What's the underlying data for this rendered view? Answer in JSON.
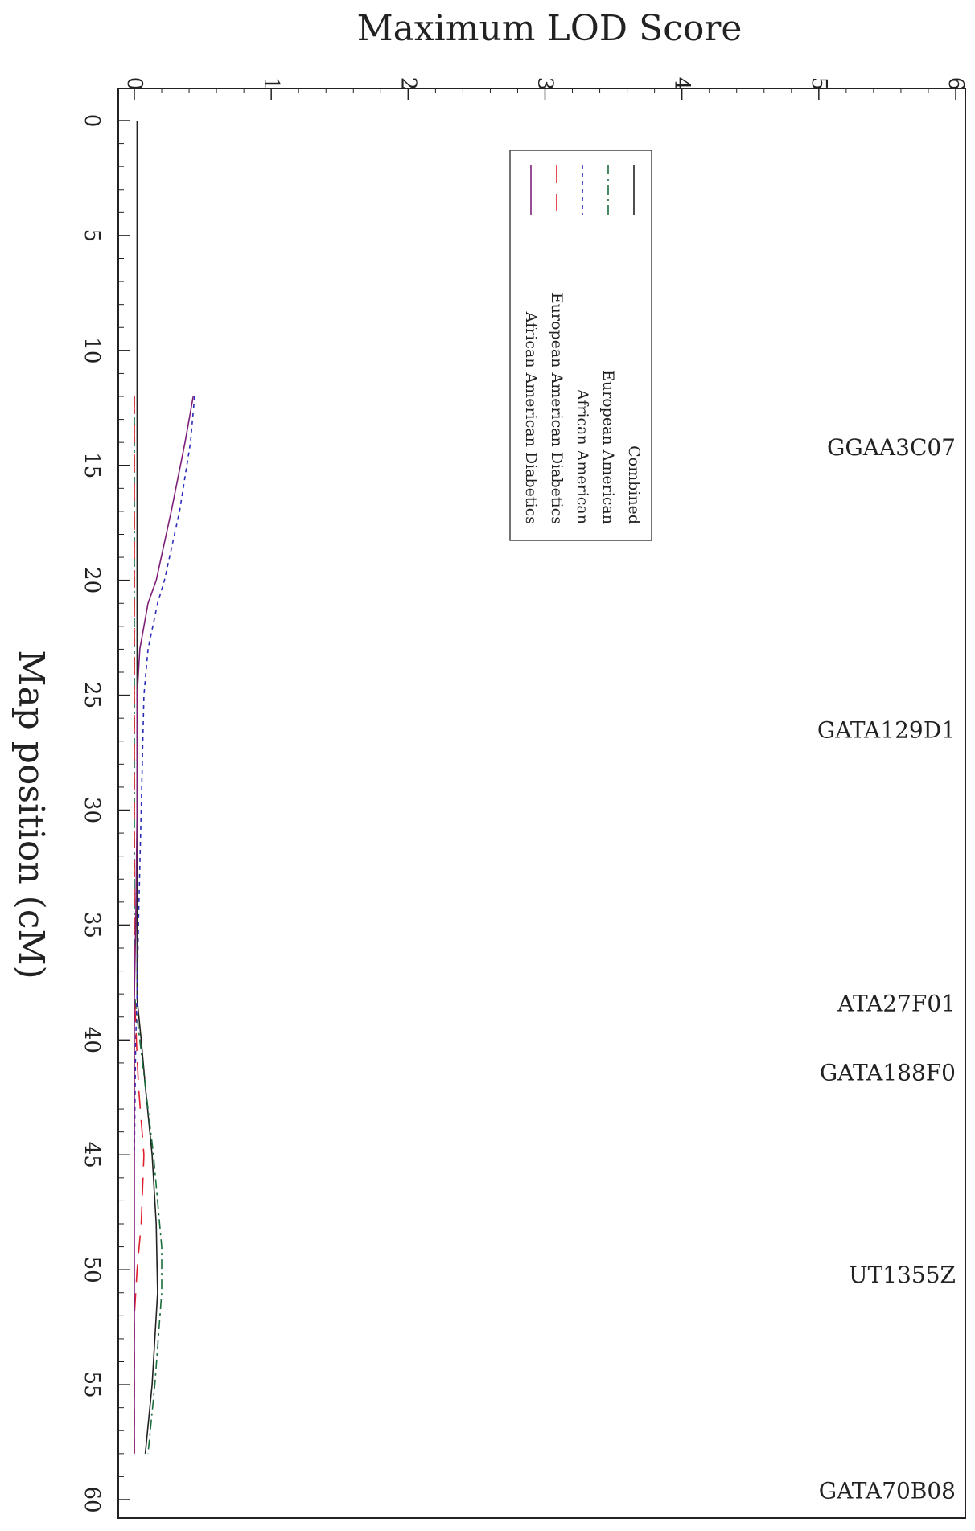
{
  "chart_data": {
    "type": "line",
    "orientation": "rotated-90",
    "xlabel": "Map position (cM)",
    "ylabel": "Maximum LOD Score",
    "xlim": [
      0,
      60
    ],
    "ylim": [
      0,
      6
    ],
    "x_ticks": [
      "0",
      "5",
      "10",
      "15",
      "20",
      "25",
      "30",
      "35",
      "40",
      "45",
      "50",
      "55",
      "60"
    ],
    "y_ticks": [
      "0",
      "1",
      "2",
      "3",
      "4",
      "5",
      "6"
    ],
    "legend_placement": "top-right",
    "markers": [
      {
        "label": "GGAA3C07",
        "position": 14.2
      },
      {
        "label": "GATA129D1",
        "position": 26.5
      },
      {
        "label": "ATA27F01",
        "position": 38.4
      },
      {
        "label": "GATA188F0",
        "position": 41.4
      },
      {
        "label": "UT1355Z",
        "position": 50.2
      },
      {
        "label": "GATA70B08",
        "position": 59.6
      }
    ],
    "series": [
      {
        "name": "Combined",
        "color": "#222222",
        "dash": "solid",
        "points": [
          [
            0,
            0.02
          ],
          [
            5,
            0.02
          ],
          [
            10,
            0.02
          ],
          [
            15,
            0.02
          ],
          [
            20,
            0.02
          ],
          [
            25,
            0.02
          ],
          [
            30,
            0.02
          ],
          [
            35,
            0.02
          ],
          [
            38.2,
            0.02
          ],
          [
            40,
            0.05
          ],
          [
            42,
            0.08
          ],
          [
            45,
            0.13
          ],
          [
            48,
            0.16
          ],
          [
            51,
            0.17
          ],
          [
            55,
            0.13
          ],
          [
            58,
            0.08
          ]
        ]
      },
      {
        "name": "European American",
        "color": "#1a6e3c",
        "dash": "12,5,3,5",
        "points": [
          [
            12,
            0.0
          ],
          [
            20,
            0.0
          ],
          [
            30,
            0.0
          ],
          [
            38,
            0.0
          ],
          [
            40,
            0.04
          ],
          [
            42,
            0.08
          ],
          [
            45,
            0.14
          ],
          [
            49,
            0.2
          ],
          [
            51,
            0.2
          ],
          [
            55,
            0.15
          ],
          [
            58,
            0.1
          ]
        ]
      },
      {
        "name": "African American",
        "color": "#2b2bb8",
        "dash": "5,5",
        "points": [
          [
            12,
            0.44
          ],
          [
            14,
            0.41
          ],
          [
            17,
            0.33
          ],
          [
            20,
            0.22
          ],
          [
            21,
            0.17
          ],
          [
            23,
            0.1
          ],
          [
            25,
            0.07
          ],
          [
            30,
            0.05
          ],
          [
            35,
            0.03
          ],
          [
            38,
            0.02
          ],
          [
            40,
            0.01
          ],
          [
            45,
            0.0
          ]
        ]
      },
      {
        "name": "European American Diabetics",
        "color": "#e0202c",
        "dash": "22,14",
        "points": [
          [
            12,
            0.0
          ],
          [
            20,
            0.0
          ],
          [
            30,
            0.0
          ],
          [
            38,
            0.0
          ],
          [
            42,
            0.03
          ],
          [
            45,
            0.07
          ],
          [
            48,
            0.05
          ],
          [
            50,
            0.02
          ],
          [
            52,
            0.0
          ],
          [
            58,
            0.0
          ]
        ]
      },
      {
        "name": "African American Diabetics",
        "color": "#7d1f78",
        "dash": "solid",
        "points": [
          [
            12,
            0.43
          ],
          [
            14,
            0.37
          ],
          [
            17,
            0.27
          ],
          [
            20,
            0.16
          ],
          [
            21,
            0.1
          ],
          [
            23,
            0.04
          ],
          [
            25,
            0.02
          ],
          [
            30,
            0.02
          ],
          [
            35,
            0.01
          ],
          [
            38,
            0.0
          ],
          [
            40,
            0.0
          ],
          [
            58,
            0.0
          ]
        ]
      }
    ]
  }
}
